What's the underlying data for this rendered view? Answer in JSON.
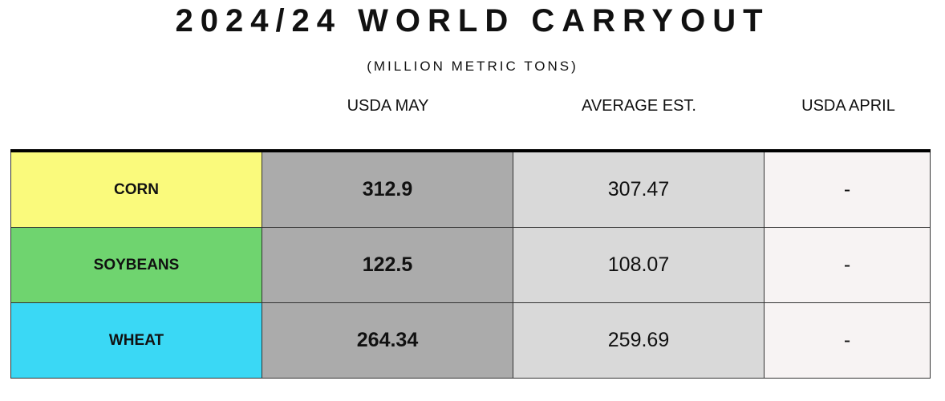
{
  "header": {
    "title": "2024/24 WORLD CARRYOUT",
    "subtitle": "(MILLION METRIC TONS)"
  },
  "table": {
    "columns": [
      "USDA MAY",
      "AVERAGE EST.",
      "USDA APRIL"
    ],
    "rows": [
      [
        "CORN",
        "312.9",
        "307.47",
        "-"
      ],
      [
        "SOYBEANS",
        "122.5",
        "108.07",
        "-"
      ],
      [
        "WHEAT",
        "264.34",
        "259.69",
        "-"
      ]
    ]
  }
}
